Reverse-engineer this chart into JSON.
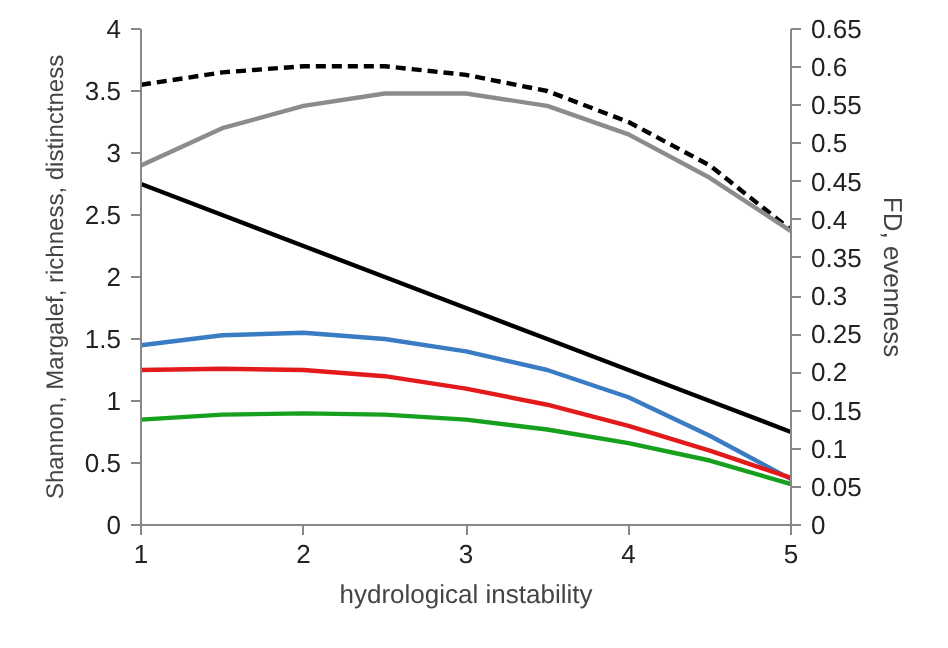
{
  "chart_data": {
    "type": "line",
    "xlabel": "hydrological instability",
    "ylabel": "Shannon, Margalef, richness, distinctness",
    "y2label": "FD, evenness",
    "x": [
      1,
      1.5,
      2,
      2.5,
      3,
      3.5,
      4,
      4.5,
      5
    ],
    "xlim": [
      1,
      5
    ],
    "xticks": [
      1,
      2,
      3,
      4,
      5
    ],
    "ylim": [
      0,
      4
    ],
    "yticks": [
      0,
      0.5,
      1,
      1.5,
      2,
      2.5,
      3,
      3.5,
      4
    ],
    "y2lim": [
      0,
      0.65
    ],
    "y2ticks": [
      0,
      0.05,
      0.1,
      0.15,
      0.2,
      0.25,
      0.3,
      0.35,
      0.4,
      0.45,
      0.5,
      0.55,
      0.6,
      0.65
    ],
    "grid": false,
    "marker": "none",
    "series": [
      {
        "color": "#000000",
        "line_style": "dashed",
        "values": [
          3.55,
          3.65,
          3.7,
          3.7,
          3.63,
          3.5,
          3.25,
          2.9,
          2.38
        ]
      },
      {
        "color": "#8c8c8c",
        "values": [
          2.9,
          3.2,
          3.38,
          3.48,
          3.48,
          3.38,
          3.15,
          2.8,
          2.37
        ]
      },
      {
        "color": "#000000",
        "values": [
          2.75,
          2.5,
          2.25,
          2,
          1.75,
          1.5,
          1.25,
          1,
          0.75
        ]
      },
      {
        "color": "#3a7cc4",
        "values": [
          1.45,
          1.53,
          1.55,
          1.5,
          1.4,
          1.25,
          1.03,
          0.72,
          0.37
        ]
      },
      {
        "color": "#e31a1c",
        "values": [
          1.25,
          1.26,
          1.25,
          1.2,
          1.1,
          0.97,
          0.8,
          0.6,
          0.38
        ]
      },
      {
        "color": "#16a01e",
        "values": [
          0.85,
          0.89,
          0.9,
          0.89,
          0.85,
          0.77,
          0.66,
          0.52,
          0.33
        ]
      }
    ]
  }
}
